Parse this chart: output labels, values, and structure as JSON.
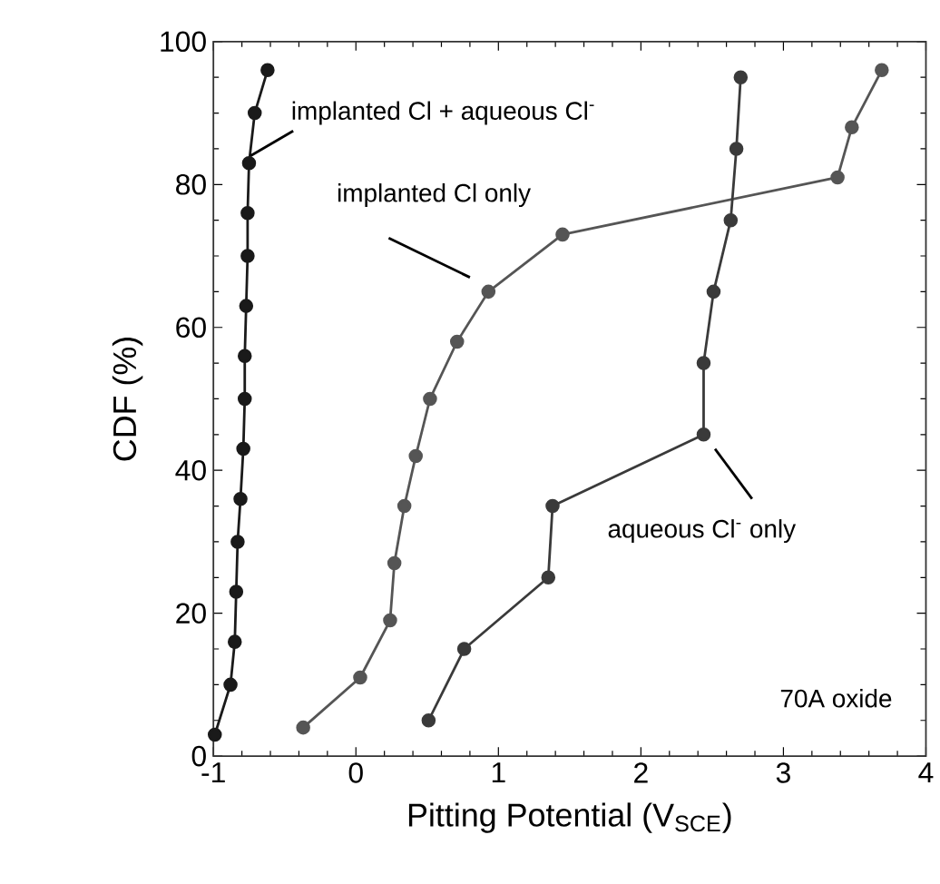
{
  "chart_data": {
    "type": "line",
    "xlabel": "Pitting Potential (V$_{SCE}$)",
    "ylabel": "CDF (%)",
    "xlim": [
      -1,
      4
    ],
    "xticks": [
      -1,
      0,
      1,
      2,
      3,
      4
    ],
    "ylim": [
      0,
      100
    ],
    "yticks": [
      0,
      20,
      40,
      60,
      80,
      100
    ],
    "marker": "circle",
    "grid": false,
    "legend": false,
    "series": [
      {
        "name": "implanted Cl + aqueous Cl$^{-}$",
        "color": "#1a1a1a",
        "x": [
          -0.99,
          -0.88,
          -0.85,
          -0.84,
          -0.83,
          -0.81,
          -0.79,
          -0.78,
          -0.78,
          -0.77,
          -0.76,
          -0.76,
          -0.75,
          -0.71,
          -0.62
        ],
        "values": [
          3,
          10,
          16,
          23,
          30,
          36,
          43,
          50,
          56,
          63,
          70,
          76,
          83,
          90,
          96
        ]
      },
      {
        "name": "implanted Cl only",
        "color": "#555555",
        "x": [
          -0.37,
          0.03,
          0.24,
          0.27,
          0.34,
          0.42,
          0.52,
          0.71,
          0.93,
          1.45,
          3.38,
          3.48,
          3.69
        ],
        "values": [
          4,
          11,
          19,
          27,
          35,
          42,
          50,
          58,
          65,
          73,
          81,
          88,
          96
        ]
      },
      {
        "name": "aqueous Cl$^{-}$ only",
        "color": "#3a3a3a",
        "x": [
          0.51,
          0.76,
          1.35,
          1.38,
          2.44,
          2.44,
          2.51,
          2.63,
          2.67,
          2.7
        ],
        "values": [
          5,
          15,
          25,
          35,
          45,
          55,
          65,
          75,
          85,
          95
        ]
      }
    ],
    "annotations": [
      "70A oxide"
    ]
  }
}
